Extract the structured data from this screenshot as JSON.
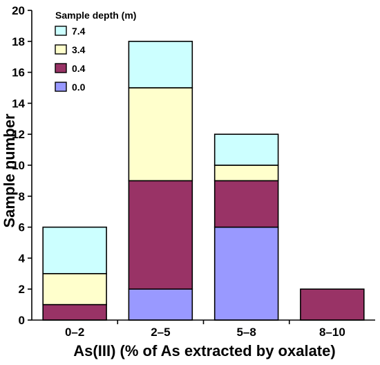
{
  "chart_data": {
    "type": "bar",
    "stacked": true,
    "categories": [
      "0–2",
      "2–5",
      "5–8",
      "8–10"
    ],
    "series": [
      {
        "name": "0.0",
        "color": "#9999ff",
        "values": [
          0,
          2,
          6,
          0
        ]
      },
      {
        "name": "0.4",
        "color": "#993366",
        "values": [
          1,
          7,
          3,
          2
        ]
      },
      {
        "name": "3.4",
        "color": "#ffffcc",
        "values": [
          2,
          6,
          1,
          0
        ]
      },
      {
        "name": "7.4",
        "color": "#ccffff",
        "values": [
          3,
          3,
          2,
          0
        ]
      }
    ],
    "xlabel": "As(III) (% of As extracted by oxalate)",
    "ylabel": "Sample number",
    "ylim": [
      0,
      20
    ],
    "yticks": [
      "0",
      "2",
      "4",
      "6",
      "8",
      "10",
      "12",
      "14",
      "16",
      "18",
      "20"
    ],
    "legend": {
      "title": "Sample depth (m)",
      "order": [
        "7.4",
        "3.4",
        "0.4",
        "0.0"
      ],
      "position": "top-left"
    },
    "grid": false
  }
}
